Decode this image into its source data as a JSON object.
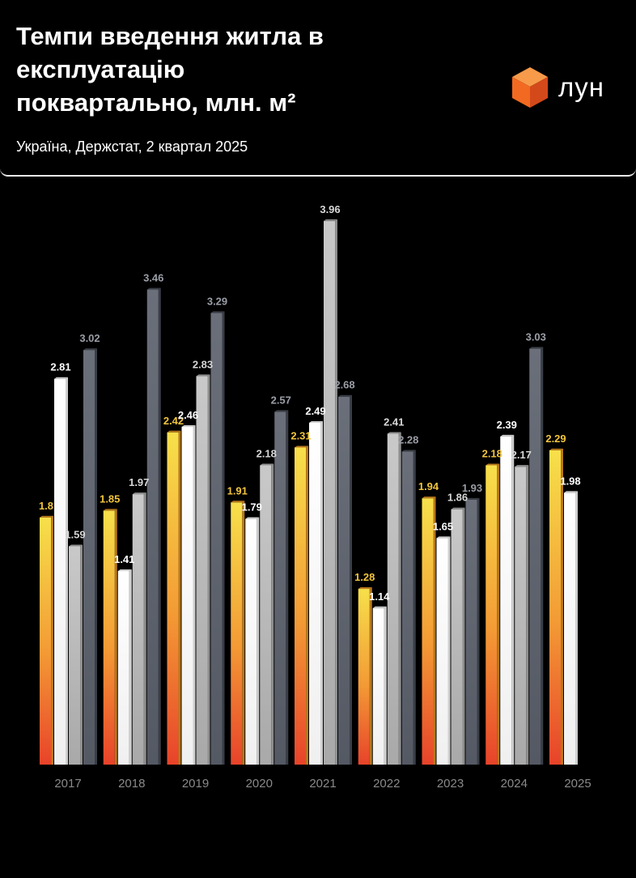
{
  "header": {
    "title_lines": [
      "Темпи введення житла в",
      "експлуатацію",
      "поквартально, млн. м²"
    ],
    "subtitle": "Україна, Держстат, 2 квартал 2025",
    "logo_text": "лун",
    "logo_icon": "orange-cube-icon"
  },
  "colors": {
    "background": "#000000",
    "q1_top": "#f7e04a",
    "q1_bottom": "#e8432a",
    "q1_label": "#f2c53d",
    "q2": "#ffffff",
    "q3": "#b8b8b8",
    "q3_label": "#d8d8d8",
    "q4": "#5f6470",
    "q4_label": "#9a9ea6",
    "axis_label": "#8a8a8a",
    "logo_orange": "#f26a21"
  },
  "chart_data": {
    "type": "bar",
    "categories": [
      "2017",
      "2018",
      "2019",
      "2020",
      "2021",
      "2022",
      "2023",
      "2024",
      "2025"
    ],
    "ylim": [
      0,
      4
    ],
    "series": [
      {
        "values": [
          1.8,
          1.85,
          2.42,
          1.91,
          2.31,
          1.28,
          1.94,
          2.18,
          2.29
        ]
      },
      {
        "values": [
          2.81,
          1.41,
          2.46,
          1.79,
          2.49,
          1.14,
          1.65,
          2.39,
          1.98
        ]
      },
      {
        "values": [
          1.59,
          1.97,
          2.83,
          2.18,
          3.96,
          2.41,
          1.86,
          2.17,
          null
        ]
      },
      {
        "values": [
          3.02,
          3.46,
          3.29,
          2.57,
          2.68,
          2.28,
          1.93,
          3.03,
          null
        ]
      }
    ],
    "labels": [
      [
        "1.8",
        "1.85",
        "2.42",
        "1.91",
        "2.31",
        "1.28",
        "1.94",
        "2.18",
        "2.29"
      ],
      [
        "2.81",
        "1.41",
        "2.46",
        "1.79",
        "2.49",
        "1.14",
        "1.65",
        "2.39",
        "1.98"
      ],
      [
        "1.59",
        "1.97",
        "2.83",
        "2.18",
        "3.96",
        "2.41",
        "1.86",
        "2.17",
        null
      ],
      [
        "3.02",
        "3.46",
        "3.29",
        "2.57",
        "2.68",
        "2.28",
        "1.93",
        "3.03",
        null
      ]
    ],
    "title": "",
    "xlabel": "",
    "ylabel": "",
    "grid": false
  }
}
